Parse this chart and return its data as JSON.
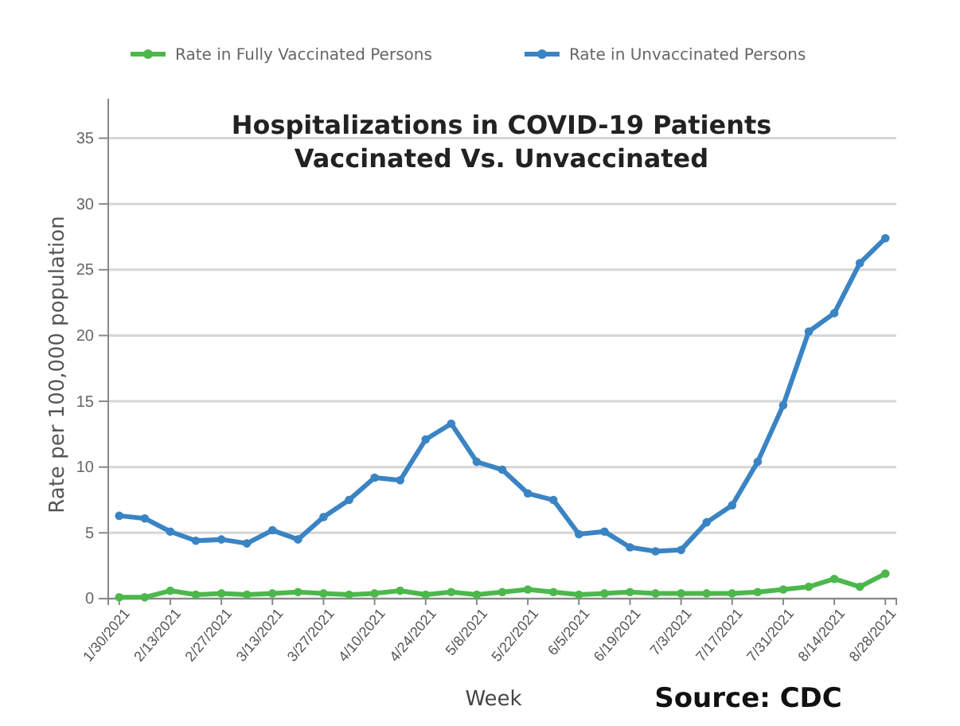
{
  "chart_data": {
    "type": "line",
    "title": "Hospitalizations in COVID-19 Patients\nVaccinated Vs. Unvaccinated",
    "xlabel": "Week",
    "ylabel": "Rate per 100,000 population",
    "annotations": [
      "Source:  CDC"
    ],
    "x": [
      "2021-01-30",
      "2021-02-06",
      "2021-02-13",
      "2021-02-20",
      "2021-02-27",
      "2021-03-06",
      "2021-03-13",
      "2021-03-20",
      "2021-03-27",
      "2021-04-03",
      "2021-04-10",
      "2021-04-17",
      "2021-04-24",
      "2021-05-01",
      "2021-05-08",
      "2021-05-15",
      "2021-05-22",
      "2021-05-29",
      "2021-06-05",
      "2021-06-12",
      "2021-06-19",
      "2021-06-26",
      "2021-07-03",
      "2021-07-10",
      "2021-07-17",
      "2021-07-24",
      "2021-07-31",
      "2021-08-07",
      "2021-08-14",
      "2021-08-21",
      "2021-08-28"
    ],
    "series": [
      {
        "name": "Rate in Fully Vaccinated Persons",
        "color": "#4cb84c",
        "values": [
          0.1,
          0.1,
          0.6,
          0.3,
          0.4,
          0.3,
          0.4,
          0.5,
          0.4,
          0.3,
          0.4,
          0.6,
          0.3,
          0.5,
          0.3,
          0.5,
          0.7,
          0.5,
          0.3,
          0.4,
          0.5,
          0.4,
          0.4,
          0.4,
          0.4,
          0.5,
          0.7,
          0.9,
          1.5,
          0.9,
          1.9
        ]
      },
      {
        "name": "Rate in Unvaccinated Persons",
        "color": "#3a84c4",
        "values": [
          6.3,
          6.1,
          5.1,
          4.4,
          4.5,
          4.2,
          5.2,
          4.5,
          6.2,
          7.5,
          9.2,
          9.0,
          12.1,
          13.3,
          10.4,
          9.8,
          8.0,
          7.5,
          4.9,
          5.1,
          3.9,
          3.6,
          3.7,
          5.8,
          7.1,
          10.4,
          14.7,
          20.3,
          21.7,
          25.5,
          27.4
        ]
      }
    ],
    "xlim": [
      "2021-01-27",
      "2021-08-31"
    ],
    "xticks": [
      {
        "value": "2021-01-30",
        "label": "1/30/2021"
      },
      {
        "value": "2021-02-13",
        "label": "2/13/2021"
      },
      {
        "value": "2021-02-27",
        "label": "2/27/2021"
      },
      {
        "value": "2021-03-13",
        "label": "3/13/2021"
      },
      {
        "value": "2021-03-27",
        "label": "3/27/2021"
      },
      {
        "value": "2021-04-10",
        "label": "4/10/2021"
      },
      {
        "value": "2021-04-24",
        "label": "4/24/2021"
      },
      {
        "value": "2021-05-08",
        "label": "5/8/2021"
      },
      {
        "value": "2021-05-22",
        "label": "5/22/2021"
      },
      {
        "value": "2021-06-05",
        "label": "6/5/2021"
      },
      {
        "value": "2021-06-19",
        "label": "6/19/2021"
      },
      {
        "value": "2021-07-03",
        "label": "7/3/2021"
      },
      {
        "value": "2021-07-17",
        "label": "7/17/2021"
      },
      {
        "value": "2021-07-31",
        "label": "7/31/2021"
      },
      {
        "value": "2021-08-14",
        "label": "8/14/2021"
      },
      {
        "value": "2021-08-28",
        "label": "8/28/2021"
      }
    ],
    "ylim": [
      0,
      38
    ],
    "yticks": [
      0,
      5,
      10,
      15,
      20,
      25,
      30,
      35
    ],
    "grid": "y",
    "legend": "top",
    "marker": "circle",
    "line_style": "solid"
  }
}
